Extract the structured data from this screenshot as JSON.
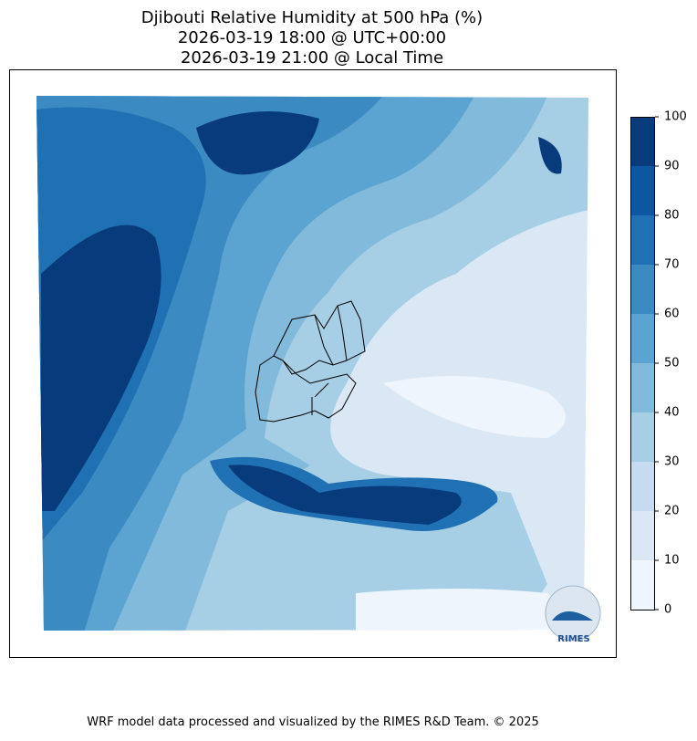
{
  "title": [
    "Djibouti Relative Humidity at 500 hPa (%)",
    "2026-03-19 18:00 @ UTC+00:00",
    "2026-03-19 21:00 @ Local Time"
  ],
  "colorbar": {
    "ticks": [
      0,
      10,
      20,
      30,
      40,
      50,
      60,
      70,
      80,
      90,
      100
    ],
    "colors": [
      "#eef5fc",
      "#dae8f6",
      "#c6dbef",
      "#a6cee4",
      "#81badb",
      "#5ba3d0",
      "#3b8bc2",
      "#2070b4",
      "#0d56a0",
      "#083b7c"
    ]
  },
  "logo": "RIMES",
  "footer": "WRF model data processed and visualized by the RIMES R&D Team. © 2025"
}
